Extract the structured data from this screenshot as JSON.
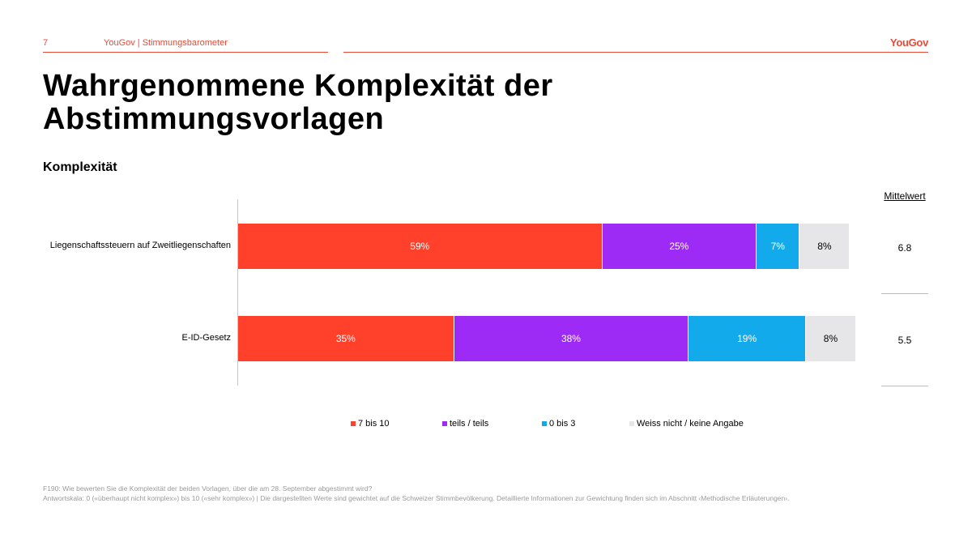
{
  "header": {
    "page_number": "7",
    "section": "YouGov | Stimmungsbarometer",
    "logo": "YouGov"
  },
  "title": "Wahrgenommene Komplexität der Abstimmungsvorlagen",
  "subtitle": "Komplexität",
  "colors": {
    "accent": "#e84a36",
    "high": "#ff412c",
    "mid": "#9e2bf5",
    "low": "#12aaeb",
    "unknown": "#e6e6e8"
  },
  "chart_data": {
    "type": "bar",
    "orientation": "horizontal",
    "stacked": true,
    "xlim": [
      0,
      100
    ],
    "categories": [
      "Liegenschaftssteuern auf Zweitliegenschaften",
      "E-ID-Gesetz"
    ],
    "series": [
      {
        "name": "7 bis 10",
        "color": "#ff412c",
        "values": [
          59,
          35
        ],
        "labels": [
          "59%",
          "35%"
        ]
      },
      {
        "name": "teils / teils",
        "color": "#9e2bf5",
        "values": [
          25,
          38
        ],
        "labels": [
          "25%",
          "38%"
        ]
      },
      {
        "name": "0 bis 3",
        "color": "#12aaeb",
        "values": [
          7,
          19
        ],
        "labels": [
          "7%",
          "19%"
        ]
      },
      {
        "name": "Weiss nicht / keine Angabe",
        "color": "#e6e6e8",
        "values": [
          8,
          8
        ],
        "labels": [
          "8%",
          "8%"
        ]
      }
    ],
    "mean_header": "Mittelwert",
    "means": [
      "6.8",
      "5.5"
    ],
    "legend_position": "bottom"
  },
  "footnote": {
    "question": "F190: Wie bewerten Sie die Komplexität der beiden Vorlagen, über die am 28. September abgestimmt wird?",
    "scale": "Antwortskala: 0 («überhaupt nicht komplex») bis 10 («sehr komplex») | Die dargestellten Werte sind gewichtet auf die Schweizer Stimmbevölkerung. Detaillierte Informationen zur Gewichtung finden sich im Abschnitt ‹Methodische Erläuterungen›."
  }
}
